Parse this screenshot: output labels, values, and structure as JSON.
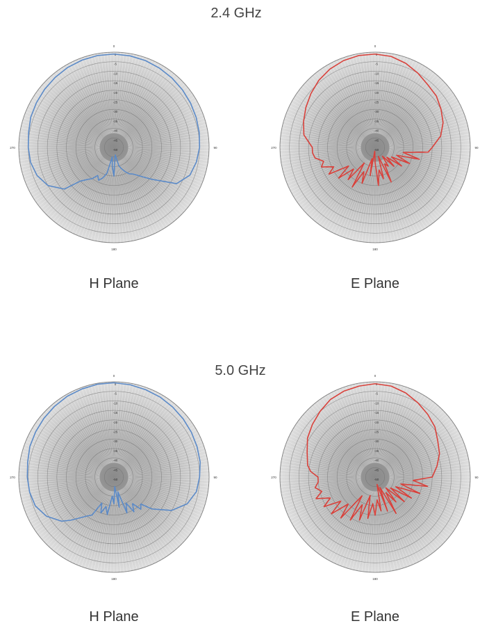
{
  "headings": {
    "band_24": "2.4 GHz",
    "band_50": "5.0 GHz"
  },
  "labels": {
    "h_plane": "H Plane",
    "e_plane": "E Plane"
  },
  "colors": {
    "h_plane": "#5b8ac8",
    "e_plane": "#d9413b"
  },
  "chart_data": [
    {
      "type": "line",
      "name": "2.4 GHz H Plane",
      "polar": true,
      "radial_range": [
        -50,
        0
      ],
      "radial_ticks": [
        0,
        -5,
        -10,
        -15,
        -20,
        -25,
        -30,
        -35,
        -40,
        -45,
        -50
      ],
      "angle_ticks": [
        0,
        90,
        180,
        270
      ],
      "angle_deg": [
        0,
        10,
        20,
        30,
        40,
        50,
        60,
        70,
        80,
        90,
        100,
        110,
        120,
        130,
        135,
        140,
        145,
        150,
        155,
        160,
        165,
        170,
        175,
        180,
        185,
        190,
        195,
        200,
        205,
        210,
        215,
        220,
        225,
        230,
        240,
        250,
        260,
        270,
        280,
        290,
        300,
        310,
        320,
        330,
        340,
        350
      ],
      "gain_db": [
        -1,
        -1.2,
        -1.5,
        -2,
        -2.5,
        -3,
        -3.5,
        -4,
        -4.5,
        -5,
        -6,
        -7.5,
        -12,
        -24,
        -28,
        -31,
        -33,
        -34,
        -36,
        -38,
        -40,
        -46,
        -44,
        -35,
        -40,
        -45,
        -36,
        -33,
        -31,
        -33,
        -30,
        -28,
        -25,
        -16,
        -10,
        -7,
        -5.5,
        -5,
        -4.5,
        -3.5,
        -3,
        -2.5,
        -2,
        -1.5,
        -1.2,
        -1
      ]
    },
    {
      "type": "line",
      "name": "2.4 GHz E Plane",
      "polar": true,
      "radial_range": [
        -50,
        0
      ],
      "radial_ticks": [
        0,
        -5,
        -10,
        -15,
        -20,
        -25,
        -30,
        -35,
        -40,
        -45,
        -50
      ],
      "angle_ticks": [
        0,
        90,
        180,
        270
      ],
      "angle_deg": [
        0,
        10,
        20,
        30,
        40,
        50,
        60,
        70,
        80,
        90,
        95,
        100,
        105,
        110,
        115,
        120,
        125,
        130,
        135,
        140,
        145,
        150,
        155,
        160,
        165,
        170,
        175,
        180,
        185,
        190,
        195,
        200,
        205,
        210,
        215,
        220,
        225,
        230,
        235,
        240,
        245,
        250,
        255,
        260,
        265,
        270,
        280,
        290,
        300,
        310,
        320,
        330,
        340,
        350
      ],
      "gain_db": [
        -1,
        -1.5,
        -3,
        -5,
        -7,
        -8,
        -10,
        -12,
        -15,
        -20,
        -22,
        -35,
        -26,
        -38,
        -30,
        -40,
        -33,
        -42,
        -36,
        -44,
        -38,
        -40,
        -30,
        -45,
        -33,
        -38,
        -30,
        -42,
        -48,
        -35,
        -44,
        -30,
        -36,
        -26,
        -40,
        -28,
        -34,
        -25,
        -33,
        -22,
        -26,
        -20,
        -22,
        -18,
        -17,
        -17,
        -12,
        -10,
        -8,
        -6,
        -4,
        -2.5,
        -1.5,
        -1
      ]
    },
    {
      "type": "line",
      "name": "5.0 GHz H Plane",
      "polar": true,
      "radial_range": [
        -50,
        0
      ],
      "radial_ticks": [
        0,
        -5,
        -10,
        -15,
        -20,
        -25,
        -30,
        -35,
        -40,
        -45,
        -50
      ],
      "angle_ticks": [
        0,
        90,
        180,
        270
      ],
      "angle_deg": [
        0,
        10,
        20,
        30,
        40,
        50,
        60,
        70,
        80,
        90,
        100,
        110,
        120,
        130,
        135,
        140,
        145,
        150,
        155,
        160,
        165,
        170,
        175,
        180,
        185,
        190,
        195,
        200,
        205,
        210,
        215,
        220,
        225,
        230,
        240,
        250,
        260,
        270,
        280,
        290,
        300,
        310,
        320,
        330,
        340,
        350
      ],
      "gain_db": [
        -0.5,
        -0.8,
        -1.2,
        -1.5,
        -2,
        -2.5,
        -3,
        -3.5,
        -4,
        -5,
        -6,
        -9,
        -15,
        -24,
        -30,
        -28,
        -33,
        -29,
        -35,
        -30,
        -42,
        -34,
        -45,
        -36,
        -40,
        -30,
        -34,
        -30,
        -35,
        -27,
        -25,
        -22,
        -18,
        -14,
        -9,
        -6,
        -5,
        -4.5,
        -4,
        -3,
        -2.5,
        -2,
        -1.5,
        -1,
        -0.8,
        -0.5
      ]
    },
    {
      "type": "line",
      "name": "5.0 GHz E Plane",
      "polar": true,
      "radial_range": [
        -50,
        0
      ],
      "radial_ticks": [
        0,
        -5,
        -10,
        -15,
        -20,
        -25,
        -30,
        -35,
        -40,
        -45,
        -50
      ],
      "angle_ticks": [
        0,
        90,
        180,
        270
      ],
      "angle_deg": [
        0,
        10,
        20,
        30,
        40,
        50,
        60,
        70,
        80,
        90,
        95,
        100,
        105,
        110,
        115,
        120,
        125,
        130,
        135,
        140,
        145,
        150,
        155,
        160,
        165,
        170,
        175,
        180,
        185,
        190,
        195,
        200,
        205,
        210,
        215,
        220,
        225,
        230,
        235,
        240,
        245,
        250,
        255,
        260,
        265,
        270,
        275,
        280,
        290,
        300,
        310,
        320,
        330,
        340,
        350
      ],
      "gain_db": [
        -1,
        -1.5,
        -3,
        -5,
        -7,
        -9,
        -12,
        -14,
        -17,
        -20,
        -30,
        -22,
        -36,
        -25,
        -38,
        -28,
        -40,
        -30,
        -42,
        -33,
        -40,
        -28,
        -44,
        -31,
        -46,
        -32,
        -38,
        -30,
        -36,
        -28,
        -40,
        -26,
        -34,
        -24,
        -38,
        -22,
        -30,
        -20,
        -28,
        -19,
        -24,
        -17,
        -21,
        -18,
        -20,
        -20,
        -16,
        -14,
        -12,
        -9,
        -7,
        -5,
        -3,
        -2,
        -1.5
      ]
    }
  ]
}
